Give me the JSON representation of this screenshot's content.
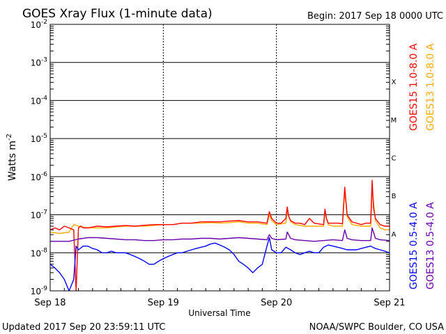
{
  "chart_data": {
    "type": "line",
    "title": "GOES Xray Flux (1-minute data)",
    "begin": "Begin:  2017 Sep 18 0000 UTC",
    "xlabel": "Universal Time",
    "ylabel": "Watts m",
    "ylabel_sup": "-2",
    "updated": "Updated 2017 Sep 20 23:59:11 UTC",
    "credit": "NOAA/SWPC Boulder, CO USA",
    "x_ticks": [
      "Sep 18",
      "Sep 19",
      "Sep 20",
      "Sep 21"
    ],
    "xlim": [
      0,
      72
    ],
    "x_unit": "hours since 2017 Sep 18 0000 UTC",
    "y_scale": "log",
    "ylim": [
      1e-09,
      0.01
    ],
    "y_ticks": [
      {
        "base": "10",
        "exp": "-2"
      },
      {
        "base": "10",
        "exp": "-3"
      },
      {
        "base": "10",
        "exp": "-4"
      },
      {
        "base": "10",
        "exp": "-5"
      },
      {
        "base": "10",
        "exp": "-6"
      },
      {
        "base": "10",
        "exp": "-7"
      },
      {
        "base": "10",
        "exp": "-8"
      },
      {
        "base": "10",
        "exp": "-9"
      }
    ],
    "flare_classes": [
      "X",
      "M",
      "C",
      "B",
      "A"
    ],
    "grid": true,
    "legend_position": "right, vertical",
    "series": [
      {
        "name": "GOES15 1.0-8.0 A",
        "color": "#ff0000",
        "x": [
          0,
          1,
          2,
          3,
          4,
          5,
          5.5,
          6,
          6.5,
          7,
          8,
          10,
          12,
          14,
          16,
          18,
          20,
          22,
          24,
          26,
          28,
          30,
          32,
          34,
          36,
          38,
          40,
          42,
          44,
          46,
          46.5,
          47,
          48,
          49,
          50,
          50.3,
          50.6,
          51,
          52,
          53,
          54,
          55,
          56,
          58,
          58.3,
          58.6,
          59,
          60,
          61,
          62,
          62.5,
          63,
          64,
          65,
          66,
          67,
          68,
          68.3,
          68.6,
          69,
          70,
          71,
          72
        ],
        "y": [
          4e-08,
          4.5e-08,
          4e-08,
          5e-08,
          4.5e-08,
          4e-08,
          1e-09,
          4.5e-08,
          5e-08,
          4.5e-08,
          4.5e-08,
          5e-08,
          4.8e-08,
          5e-08,
          5.2e-08,
          5e-08,
          5.3e-08,
          5.5e-08,
          5.5e-08,
          5.5e-08,
          6e-08,
          6e-08,
          6.5e-08,
          6.5e-08,
          6.5e-08,
          6.8e-08,
          7e-08,
          6.5e-08,
          6.5e-08,
          6e-08,
          1.2e-07,
          8e-08,
          6e-08,
          6e-08,
          8e-08,
          1.6e-07,
          9e-08,
          7e-08,
          6e-08,
          6e-08,
          5.5e-08,
          8e-08,
          6e-08,
          5.5e-08,
          1.4e-07,
          8e-08,
          6e-08,
          6e-08,
          6e-08,
          5.8e-08,
          5.3e-07,
          1e-07,
          6.5e-08,
          6e-08,
          5.5e-08,
          6e-08,
          6e-08,
          8e-07,
          1.5e-07,
          8e-08,
          5.5e-08,
          5e-08,
          5e-08
        ]
      },
      {
        "name": "GOES13 1.0-8.0 A",
        "color": "#ffaa00",
        "x": [
          0,
          2,
          4,
          5,
          6,
          8,
          10,
          12,
          14,
          16,
          18,
          20,
          22,
          24,
          26,
          28,
          30,
          32,
          34,
          36,
          38,
          40,
          42,
          44,
          46,
          46.5,
          47,
          48,
          50,
          50.3,
          51,
          52,
          54,
          56,
          58,
          58.3,
          59,
          60,
          62,
          62.5,
          63,
          64,
          66,
          68,
          68.3,
          69,
          70,
          71,
          72
        ],
        "y": [
          3.5e-08,
          3.2e-08,
          3.5e-08,
          5.5e-08,
          5e-08,
          4.5e-08,
          4.5e-08,
          4.5e-08,
          4.8e-08,
          5e-08,
          5e-08,
          5e-08,
          5.2e-08,
          5.5e-08,
          5.5e-08,
          6e-08,
          6e-08,
          6e-08,
          6.2e-08,
          6e-08,
          6.2e-08,
          6.5e-08,
          6e-08,
          6e-08,
          5.5e-08,
          1e-07,
          7e-08,
          5.5e-08,
          6e-08,
          1.2e-07,
          6.5e-08,
          5.5e-08,
          5e-08,
          5e-08,
          5e-08,
          1.1e-07,
          5.5e-08,
          5e-08,
          5e-08,
          4.2e-07,
          9e-08,
          5.5e-08,
          5e-08,
          5e-08,
          5e-07,
          7e-08,
          4.5e-08,
          4e-08,
          4e-08
        ]
      },
      {
        "name": "GOES15 0.5-4.0 A",
        "color": "#0000ff",
        "x": [
          0,
          1,
          2,
          3,
          4,
          5,
          5.5,
          6,
          7,
          8,
          9,
          10,
          11,
          12,
          13,
          14,
          15,
          16,
          17,
          18,
          19,
          20,
          21,
          22,
          23,
          24,
          25,
          26,
          27,
          28,
          29,
          30,
          31,
          32,
          33,
          34,
          35,
          36,
          37,
          38,
          39,
          40,
          41,
          42,
          43,
          44,
          45,
          46,
          46.5,
          47,
          48,
          49,
          50,
          51,
          52,
          53,
          54,
          55,
          56,
          57,
          58,
          59,
          60,
          61,
          62,
          63,
          64,
          65,
          66,
          67,
          68,
          69,
          70,
          71,
          72
        ],
        "y": [
          5e-09,
          4e-09,
          3e-09,
          2e-09,
          1e-09,
          2e-09,
          1.5e-08,
          1.2e-08,
          1.5e-08,
          1.5e-08,
          1.3e-08,
          1.2e-08,
          1e-08,
          1e-08,
          1.1e-08,
          1e-08,
          1e-08,
          1e-08,
          9e-09,
          8e-09,
          7e-09,
          6e-09,
          5e-09,
          5e-09,
          6e-09,
          7e-09,
          8e-09,
          9e-09,
          1e-08,
          1e-08,
          1.1e-08,
          1.2e-08,
          1.3e-08,
          1.4e-08,
          1.5e-08,
          1.7e-08,
          1.8e-08,
          1.6e-08,
          1.4e-08,
          1.2e-08,
          9e-09,
          6e-09,
          5e-09,
          4e-09,
          3e-09,
          4e-09,
          5e-09,
          1.5e-08,
          2.5e-08,
          1.2e-08,
          1e-08,
          1e-08,
          1.4e-08,
          1.2e-08,
          1e-08,
          9e-09,
          1e-08,
          1.1e-08,
          1e-08,
          1e-08,
          1.4e-08,
          1.6e-08,
          1.5e-08,
          1.4e-08,
          1.3e-08,
          1.2e-08,
          1.2e-08,
          1.2e-08,
          1.3e-08,
          1.4e-08,
          1.5e-08,
          1.3e-08,
          1.2e-08,
          1.1e-08,
          1e-08
        ]
      },
      {
        "name": "GOES13 0.5-4.0 A",
        "color": "#6600aa",
        "x": [
          0,
          2,
          4,
          6,
          8,
          10,
          12,
          14,
          16,
          18,
          20,
          22,
          24,
          26,
          28,
          30,
          32,
          34,
          36,
          38,
          40,
          42,
          44,
          46,
          46.5,
          47,
          48,
          50,
          50.3,
          51,
          52,
          54,
          56,
          58,
          60,
          62,
          62.5,
          63,
          64,
          66,
          68,
          68.3,
          69,
          70,
          72
        ],
        "y": [
          2e-08,
          2e-08,
          2e-08,
          2.3e-08,
          2.5e-08,
          2.5e-08,
          2.4e-08,
          2.3e-08,
          2.2e-08,
          2.2e-08,
          2.1e-08,
          2.1e-08,
          2.2e-08,
          2.2e-08,
          2.3e-08,
          2.3e-08,
          2.4e-08,
          2.4e-08,
          2.3e-08,
          2.4e-08,
          2.5e-08,
          2.4e-08,
          2.3e-08,
          2.2e-08,
          3e-08,
          2.4e-08,
          2.2e-08,
          2.3e-08,
          3.5e-08,
          2.4e-08,
          2.2e-08,
          2.1e-08,
          2e-08,
          2.1e-08,
          2.2e-08,
          2.1e-08,
          4e-08,
          2.4e-08,
          2.2e-08,
          2.1e-08,
          2.1e-08,
          4.5e-08,
          2.4e-08,
          2.2e-08,
          2.1e-08
        ]
      }
    ]
  }
}
